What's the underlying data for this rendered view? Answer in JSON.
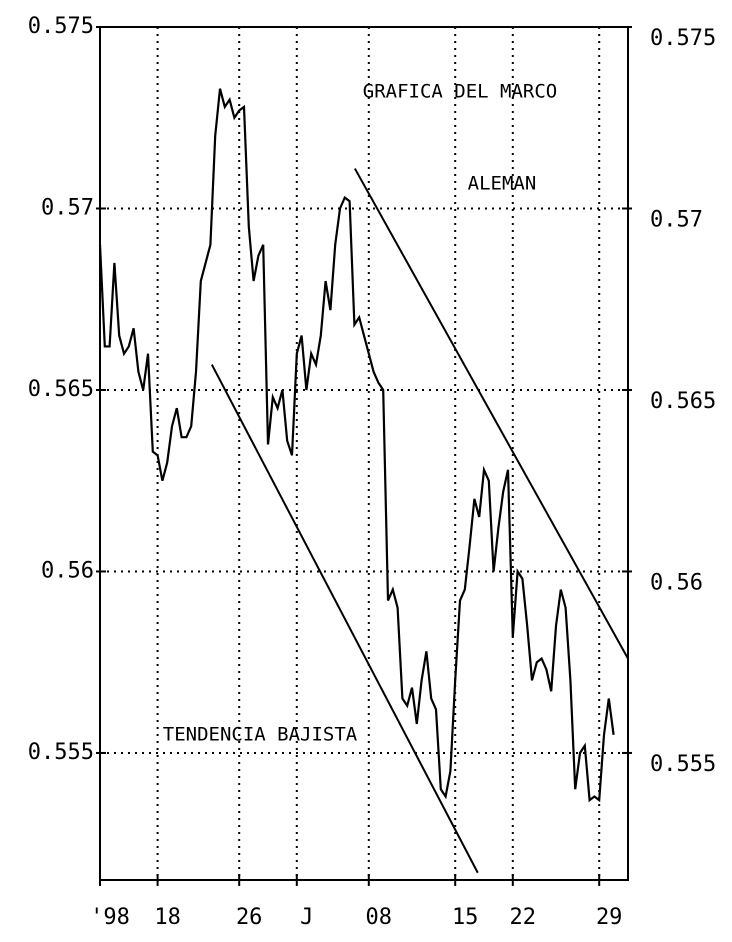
{
  "chart_data": {
    "type": "line",
    "annotations": [
      "GRAFICA DEL MARCO",
      "ALEMAN",
      "TENDENCIA BAJISTA"
    ],
    "x": [
      0,
      1,
      2,
      3,
      4,
      5,
      6,
      7,
      8,
      9,
      10,
      11,
      12,
      13,
      14,
      15,
      16,
      17,
      18,
      19,
      20,
      21,
      22,
      23,
      24,
      25,
      26,
      27,
      28,
      29,
      30,
      31,
      32,
      33,
      34,
      35,
      36,
      37,
      38,
      39,
      40,
      41,
      42,
      43,
      44,
      45,
      46,
      47,
      48,
      49,
      50,
      51,
      52,
      53,
      54,
      55,
      56,
      57,
      58,
      59,
      60,
      61,
      62,
      63,
      64,
      65,
      66,
      67,
      68,
      69,
      70,
      71,
      72,
      73,
      74,
      75,
      76,
      77,
      78,
      79,
      80,
      81,
      82,
      83,
      84,
      85,
      86,
      87,
      88,
      89,
      90,
      91,
      92,
      93,
      94,
      95,
      96,
      97,
      98,
      99,
      100,
      101,
      102,
      103,
      104,
      105,
      106,
      107
    ],
    "series": [
      {
        "color": "#000000",
        "values": [
          0.569,
          0.5662,
          0.5662,
          0.5685,
          0.5665,
          0.566,
          0.5662,
          0.5667,
          0.5655,
          0.565,
          0.566,
          0.5633,
          0.5632,
          0.5625,
          0.563,
          0.564,
          0.5645,
          0.5637,
          0.5637,
          0.564,
          0.5655,
          0.568,
          0.5685,
          0.569,
          0.572,
          0.5733,
          0.5728,
          0.573,
          0.5725,
          0.5727,
          0.5728,
          0.5695,
          0.568,
          0.5687,
          0.569,
          0.5635,
          0.5648,
          0.5645,
          0.565,
          0.5636,
          0.5632,
          0.566,
          0.5665,
          0.565,
          0.566,
          0.5657,
          0.5665,
          0.568,
          0.5672,
          0.569,
          0.57,
          0.5703,
          0.5702,
          0.5668,
          0.567,
          0.5665,
          0.566,
          0.5655,
          0.5652,
          0.565,
          0.5592,
          0.5595,
          0.559,
          0.5565,
          0.5563,
          0.5568,
          0.5558,
          0.557,
          0.5578,
          0.5565,
          0.5562,
          0.554,
          0.5538,
          0.5545,
          0.557,
          0.5592,
          0.5595,
          0.5607,
          0.562,
          0.5615,
          0.5628,
          0.5625,
          0.56,
          0.5612,
          0.5622,
          0.5628,
          0.5582,
          0.56,
          0.5598,
          0.5585,
          0.557,
          0.5575,
          0.5576,
          0.5573,
          0.5567,
          0.5585,
          0.5595,
          0.559,
          0.557,
          0.554,
          0.555,
          0.5552,
          0.5537,
          0.5538,
          0.5537,
          0.5555,
          0.5565,
          0.5555
        ]
      }
    ],
    "trend_lines": [
      {
        "x": [
          53.1,
          110
        ],
        "y": [
          0.5711,
          0.5576
        ]
      },
      {
        "x": [
          23.3,
          78.7
        ],
        "y": [
          0.5657,
          0.5517
        ]
      }
    ],
    "xlim": [
      0,
      110
    ],
    "xticks": [
      {
        "value": 0,
        "label": "'98"
      },
      {
        "value": 12,
        "label": "18"
      },
      {
        "value": 29,
        "label": "26"
      },
      {
        "value": 41,
        "label": "J"
      },
      {
        "value": 56,
        "label": "08"
      },
      {
        "value": 74,
        "label": "15"
      },
      {
        "value": 86,
        "label": "22"
      },
      {
        "value": 104,
        "label": "29"
      }
    ],
    "ylim": [
      0.5515,
      0.575
    ],
    "yticks": [
      0.575,
      0.57,
      0.565,
      0.56,
      0.555
    ],
    "y2lim": [
      0.5515,
      0.575
    ],
    "y2ticks": [
      0.575,
      0.57,
      0.565,
      0.56,
      0.555
    ],
    "grid": true
  }
}
